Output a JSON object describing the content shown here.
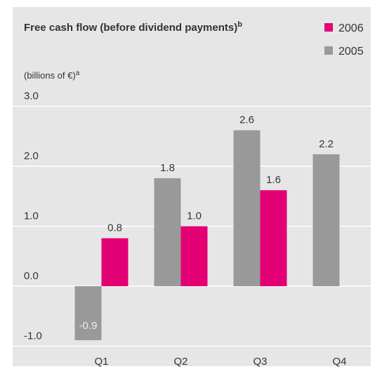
{
  "chart_data": {
    "type": "bar",
    "title": "Free cash flow (before dividend payments)",
    "title_note": "b",
    "y_label": "(billions of €)",
    "y_label_note": "a",
    "categories": [
      "Q1",
      "Q2",
      "Q3",
      "Q4"
    ],
    "series": [
      {
        "name": "2006",
        "color": "#e20074",
        "values": [
          0.8,
          1.0,
          1.6,
          null
        ],
        "value_labels": [
          "0.8",
          "1.0",
          "1.6",
          null
        ]
      },
      {
        "name": "2005",
        "color": "#999999",
        "values": [
          -0.9,
          1.8,
          2.6,
          2.2
        ],
        "value_labels": [
          "-0.9",
          "1.8",
          "2.6",
          "2.2"
        ]
      }
    ],
    "ylim": [
      -1,
      3
    ],
    "yticks": [
      {
        "value": -1,
        "label": "-1.0"
      },
      {
        "value": 0,
        "label": "0.0"
      },
      {
        "value": 1,
        "label": "1.0"
      },
      {
        "value": 2,
        "label": "2.0"
      },
      {
        "value": 3,
        "label": "3.0"
      }
    ],
    "grid": true,
    "legend": "top-right"
  }
}
